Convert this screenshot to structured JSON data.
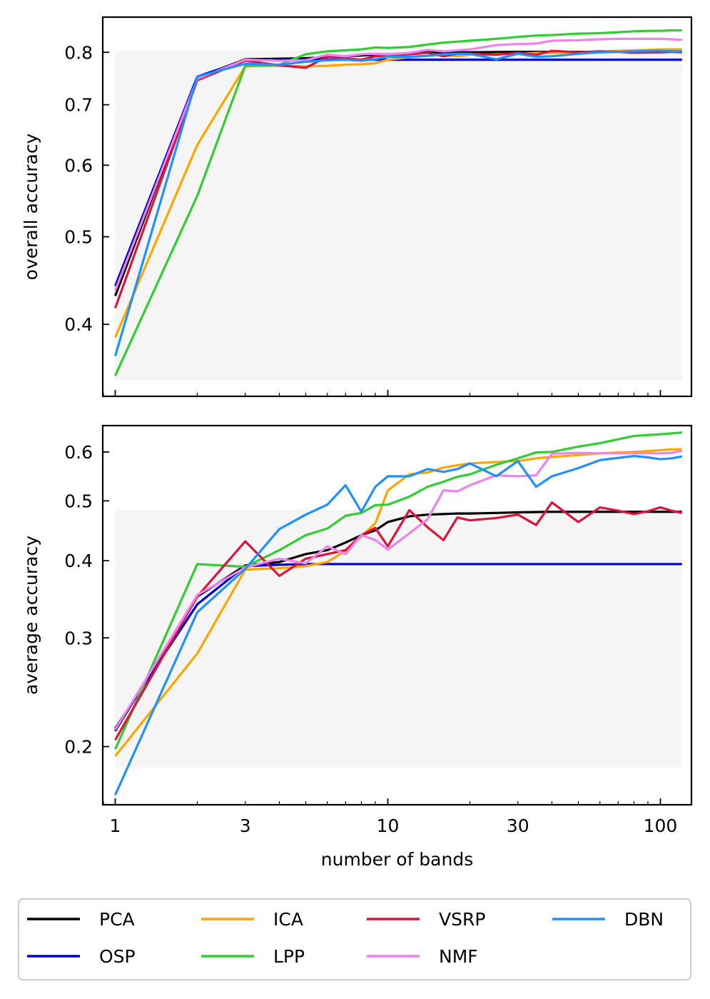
{
  "chart_data": [
    {
      "type": "line",
      "title": "",
      "xlabel": "",
      "ylabel": "overall accuracy",
      "x_scale": "log",
      "y_scale": "log",
      "xlim": [
        0.9,
        130
      ],
      "ylim": [
        0.333,
        0.875
      ],
      "x_ticks": [],
      "y_ticks": [
        {
          "value": 0.4,
          "label": "0.4"
        },
        {
          "value": 0.5,
          "label": "0.5"
        },
        {
          "value": 0.6,
          "label": "0.6"
        },
        {
          "value": 0.7,
          "label": "0.7"
        },
        {
          "value": 0.8,
          "label": "0.8"
        }
      ],
      "shaded_region": {
        "x": [
          1,
          120
        ],
        "y": [
          0.347,
          0.803
        ],
        "color": "#f5f5f5"
      },
      "series": [
        {
          "name": "PCA",
          "color": "#000000",
          "x": [
            1,
            2,
            3,
            5,
            7,
            10,
            14,
            20,
            30,
            50,
            70,
            100,
            120
          ],
          "y": [
            0.43,
            0.75,
            0.786,
            0.788,
            0.792,
            0.796,
            0.8,
            0.8,
            0.801,
            0.801,
            0.801,
            0.801,
            0.801
          ]
        },
        {
          "name": "OSP",
          "color": "#0000cd",
          "x": [
            1,
            2,
            3,
            5,
            7,
            10,
            14,
            20,
            30,
            50,
            70,
            100,
            120
          ],
          "y": [
            0.441,
            0.752,
            0.784,
            0.785,
            0.785,
            0.785,
            0.785,
            0.785,
            0.785,
            0.785,
            0.785,
            0.785,
            0.785
          ]
        },
        {
          "name": "ICA",
          "color": "#ffa500",
          "x": [
            1,
            2,
            3,
            4,
            5,
            6,
            7,
            8,
            9,
            10,
            12,
            14,
            16,
            18,
            20,
            25,
            30,
            35,
            40,
            50,
            60,
            70,
            80,
            90,
            100,
            110,
            120
          ],
          "y": [
            0.387,
            0.632,
            0.772,
            0.773,
            0.772,
            0.773,
            0.775,
            0.776,
            0.778,
            0.785,
            0.79,
            0.793,
            0.795,
            0.792,
            0.795,
            0.796,
            0.797,
            0.799,
            0.799,
            0.8,
            0.801,
            0.803,
            0.804,
            0.805,
            0.806,
            0.806,
            0.806
          ]
        },
        {
          "name": "LPP",
          "color": "#32cd32",
          "x": [
            1,
            2,
            3,
            4,
            5,
            6,
            7,
            8,
            9,
            10,
            12,
            14,
            16,
            18,
            20,
            25,
            30,
            35,
            40,
            50,
            60,
            70,
            80,
            90,
            100,
            110,
            120
          ],
          "y": [
            0.351,
            0.555,
            0.773,
            0.775,
            0.796,
            0.802,
            0.804,
            0.806,
            0.81,
            0.809,
            0.811,
            0.816,
            0.82,
            0.822,
            0.824,
            0.828,
            0.832,
            0.835,
            0.836,
            0.839,
            0.84,
            0.842,
            0.844,
            0.845,
            0.845,
            0.846,
            0.846
          ]
        },
        {
          "name": "VSRP",
          "color": "#dc143c",
          "x": [
            1,
            2,
            3,
            4,
            5,
            6,
            7,
            8,
            9,
            10,
            12,
            14,
            16,
            18,
            20,
            25,
            30,
            35,
            40,
            50,
            60,
            70,
            80,
            90,
            100,
            110,
            120
          ],
          "y": [
            0.417,
            0.745,
            0.783,
            0.774,
            0.769,
            0.791,
            0.788,
            0.785,
            0.792,
            0.794,
            0.796,
            0.799,
            0.792,
            0.797,
            0.797,
            0.795,
            0.799,
            0.795,
            0.803,
            0.8,
            0.802,
            0.801,
            0.799,
            0.8,
            0.8,
            0.801,
            0.8
          ]
        },
        {
          "name": "NMF",
          "color": "#ee82ee",
          "x": [
            1,
            2,
            3,
            4,
            5,
            6,
            7,
            8,
            9,
            10,
            12,
            14,
            16,
            18,
            20,
            25,
            30,
            35,
            40,
            50,
            60,
            70,
            80,
            90,
            100,
            110,
            120
          ],
          "y": [
            0.436,
            0.748,
            0.785,
            0.783,
            0.784,
            0.795,
            0.792,
            0.796,
            0.797,
            0.796,
            0.799,
            0.805,
            0.802,
            0.804,
            0.806,
            0.815,
            0.817,
            0.818,
            0.824,
            0.825,
            0.827,
            0.828,
            0.828,
            0.828,
            0.828,
            0.827,
            0.826
          ]
        },
        {
          "name": "DBN",
          "color": "#1e90ff",
          "x": [
            1,
            2,
            3,
            4,
            5,
            6,
            7,
            8,
            9,
            10,
            12,
            14,
            16,
            18,
            20,
            25,
            30,
            35,
            40,
            50,
            60,
            70,
            80,
            90,
            100,
            110,
            120
          ],
          "y": [
            0.369,
            0.752,
            0.777,
            0.775,
            0.781,
            0.784,
            0.785,
            0.783,
            0.786,
            0.791,
            0.791,
            0.793,
            0.796,
            0.797,
            0.797,
            0.786,
            0.797,
            0.791,
            0.792,
            0.797,
            0.8,
            0.801,
            0.802,
            0.803,
            0.803,
            0.802,
            0.802
          ]
        }
      ]
    },
    {
      "type": "line",
      "title": "",
      "xlabel": "number of bands",
      "ylabel": "average accuracy",
      "x_scale": "log",
      "y_scale": "log",
      "xlim": [
        0.9,
        130
      ],
      "ylim": [
        0.161,
        0.662
      ],
      "x_ticks": [
        {
          "value": 1,
          "label": "1"
        },
        {
          "value": 3,
          "label": "3"
        },
        {
          "value": 10,
          "label": "10"
        },
        {
          "value": 30,
          "label": "30"
        },
        {
          "value": 100,
          "label": "100"
        }
      ],
      "y_ticks": [
        {
          "value": 0.2,
          "label": "0.2"
        },
        {
          "value": 0.3,
          "label": "0.3"
        },
        {
          "value": 0.4,
          "label": "0.4"
        },
        {
          "value": 0.5,
          "label": "0.5"
        },
        {
          "value": 0.6,
          "label": "0.6"
        }
      ],
      "shaded_region": {
        "x": [
          1,
          120
        ],
        "y": [
          0.185,
          0.483
        ],
        "color": "#f5f5f5"
      },
      "series": [
        {
          "name": "PCA",
          "color": "#000000",
          "x": [
            1,
            2,
            3,
            4,
            5,
            6,
            7,
            8,
            9,
            10,
            12,
            14,
            16,
            18,
            20,
            25,
            30,
            40,
            50,
            70,
            100,
            120
          ],
          "y": [
            0.212,
            0.35,
            0.393,
            0.398,
            0.41,
            0.416,
            0.428,
            0.44,
            0.448,
            0.462,
            0.472,
            0.475,
            0.476,
            0.477,
            0.477,
            0.478,
            0.479,
            0.48,
            0.48,
            0.48,
            0.48,
            0.48
          ]
        },
        {
          "name": "OSP",
          "color": "#0000cd",
          "x": [
            1,
            2,
            3,
            4,
            5,
            6,
            7,
            8,
            9,
            10,
            12,
            14,
            16,
            18,
            20,
            25,
            30,
            40,
            50,
            70,
            100,
            120
          ],
          "y": [
            0.214,
            0.34,
            0.392,
            0.394,
            0.395,
            0.395,
            0.395,
            0.395,
            0.395,
            0.395,
            0.395,
            0.395,
            0.395,
            0.395,
            0.395,
            0.395,
            0.395,
            0.395,
            0.395,
            0.395,
            0.395,
            0.395
          ]
        },
        {
          "name": "ICA",
          "color": "#ffa500",
          "x": [
            1,
            2,
            3,
            4,
            5,
            6,
            7,
            8,
            9,
            10,
            12,
            14,
            16,
            18,
            20,
            25,
            30,
            35,
            40,
            50,
            60,
            70,
            80,
            90,
            100,
            110,
            120
          ],
          "y": [
            0.193,
            0.283,
            0.387,
            0.389,
            0.392,
            0.398,
            0.415,
            0.438,
            0.46,
            0.52,
            0.552,
            0.556,
            0.566,
            0.571,
            0.575,
            0.578,
            0.58,
            0.586,
            0.589,
            0.593,
            0.597,
            0.599,
            0.6,
            0.602,
            0.604,
            0.606,
            0.606
          ]
        },
        {
          "name": "LPP",
          "color": "#32cd32",
          "x": [
            1,
            2,
            3,
            4,
            5,
            6,
            7,
            8,
            9,
            10,
            12,
            14,
            16,
            18,
            20,
            25,
            30,
            35,
            40,
            50,
            60,
            70,
            80,
            90,
            100,
            110,
            120
          ],
          "y": [
            0.198,
            0.395,
            0.391,
            0.416,
            0.44,
            0.451,
            0.473,
            0.478,
            0.492,
            0.493,
            0.508,
            0.527,
            0.537,
            0.547,
            0.552,
            0.572,
            0.586,
            0.599,
            0.6,
            0.612,
            0.62,
            0.629,
            0.637,
            0.639,
            0.641,
            0.643,
            0.645
          ]
        },
        {
          "name": "VSRP",
          "color": "#dc143c",
          "x": [
            1,
            2,
            3,
            4,
            5,
            6,
            7,
            8,
            9,
            10,
            12,
            14,
            16,
            18,
            20,
            25,
            30,
            35,
            40,
            50,
            60,
            70,
            80,
            90,
            100,
            110,
            120
          ],
          "y": [
            0.205,
            0.35,
            0.43,
            0.378,
            0.403,
            0.41,
            0.416,
            0.44,
            0.452,
            0.422,
            0.483,
            0.453,
            0.432,
            0.47,
            0.465,
            0.469,
            0.475,
            0.457,
            0.497,
            0.462,
            0.488,
            0.482,
            0.476,
            0.481,
            0.488,
            0.482,
            0.478
          ]
        },
        {
          "name": "NMF",
          "color": "#ee82ee",
          "x": [
            1,
            2,
            3,
            4,
            5,
            6,
            7,
            8,
            9,
            10,
            12,
            14,
            16,
            18,
            20,
            25,
            30,
            35,
            40,
            50,
            60,
            70,
            80,
            90,
            100,
            110,
            120
          ],
          "y": [
            0.213,
            0.352,
            0.39,
            0.403,
            0.396,
            0.422,
            0.41,
            0.44,
            0.432,
            0.417,
            0.443,
            0.467,
            0.52,
            0.518,
            0.53,
            0.55,
            0.548,
            0.55,
            0.596,
            0.598,
            0.597,
            0.597,
            0.597,
            0.597,
            0.597,
            0.598,
            0.603
          ]
        },
        {
          "name": "DBN",
          "color": "#1e90ff",
          "x": [
            1,
            2,
            3,
            4,
            5,
            6,
            7,
            8,
            9,
            10,
            12,
            14,
            16,
            18,
            20,
            25,
            30,
            35,
            40,
            50,
            60,
            70,
            80,
            90,
            100,
            110,
            120
          ],
          "y": [
            0.167,
            0.33,
            0.388,
            0.45,
            0.475,
            0.493,
            0.53,
            0.48,
            0.527,
            0.548,
            0.548,
            0.563,
            0.557,
            0.563,
            0.575,
            0.548,
            0.58,
            0.527,
            0.548,
            0.565,
            0.582,
            0.587,
            0.591,
            0.588,
            0.584,
            0.586,
            0.59
          ]
        }
      ]
    }
  ],
  "legend": {
    "placement": "bottom",
    "columns": 4,
    "entries": [
      {
        "name": "PCA",
        "color": "#000000"
      },
      {
        "name": "OSP",
        "color": "#0000cd"
      },
      {
        "name": "ICA",
        "color": "#ffa500"
      },
      {
        "name": "LPP",
        "color": "#32cd32"
      },
      {
        "name": "VSRP",
        "color": "#dc143c"
      },
      {
        "name": "NMF",
        "color": "#ee82ee"
      },
      {
        "name": "DBN",
        "color": "#1e90ff"
      }
    ]
  }
}
